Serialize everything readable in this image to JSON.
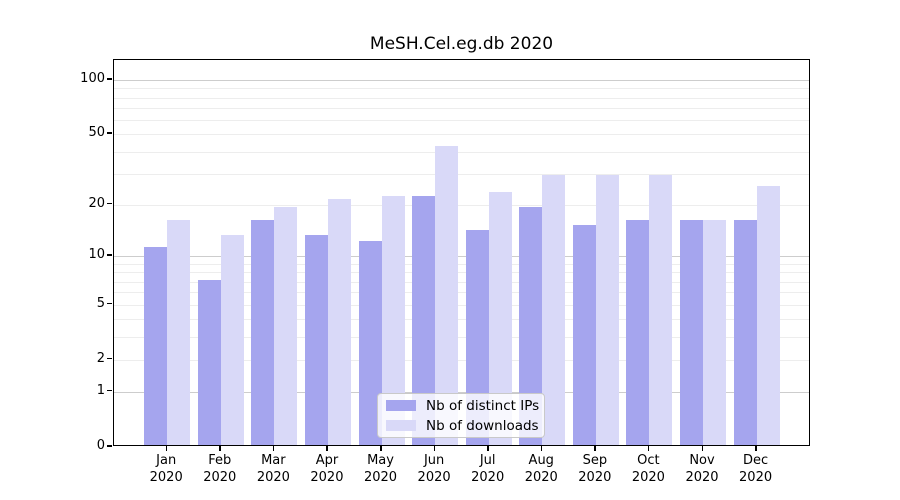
{
  "title": "MeSH.Cel.eg.db 2020",
  "chart_data": {
    "type": "bar",
    "title": "MeSH.Cel.eg.db 2020",
    "categories": [
      "Jan 2020",
      "Feb 2020",
      "Mar 2020",
      "Apr 2020",
      "May 2020",
      "Jun 2020",
      "Jul 2020",
      "Aug 2020",
      "Sep 2020",
      "Oct 2020",
      "Nov 2020",
      "Dec 2020"
    ],
    "series": [
      {
        "name": "Nb of distinct IPs",
        "color": "#a5a5ee",
        "values": [
          11,
          7,
          16,
          13,
          12,
          22,
          14,
          19,
          15,
          16,
          16,
          16
        ]
      },
      {
        "name": "Nb of downloads",
        "color": "#d9d9f8",
        "values": [
          16,
          13,
          19,
          21,
          22,
          42,
          23,
          29,
          29,
          29,
          16,
          25
        ]
      }
    ],
    "xlabel": "",
    "ylabel": "",
    "y_scale": "log1p",
    "y_tick_labels": [
      0,
      1,
      2,
      5,
      10,
      20,
      50,
      100
    ],
    "major_gridlines": [
      1,
      10,
      100
    ],
    "minor_gridlines": [
      2,
      3,
      4,
      5,
      6,
      7,
      8,
      9,
      20,
      30,
      40,
      50,
      60,
      70,
      80,
      90
    ],
    "ylim": [
      0,
      130
    ],
    "grid": true,
    "legend_position": "lower center",
    "colors": {
      "bar_dark": "#a5a5ee",
      "bar_light": "#d9d9f8",
      "grid_major": "#cdcdcd",
      "grid_minor": "#ededed",
      "axis": "#000000",
      "legend_border": "#c9c9c9"
    }
  }
}
